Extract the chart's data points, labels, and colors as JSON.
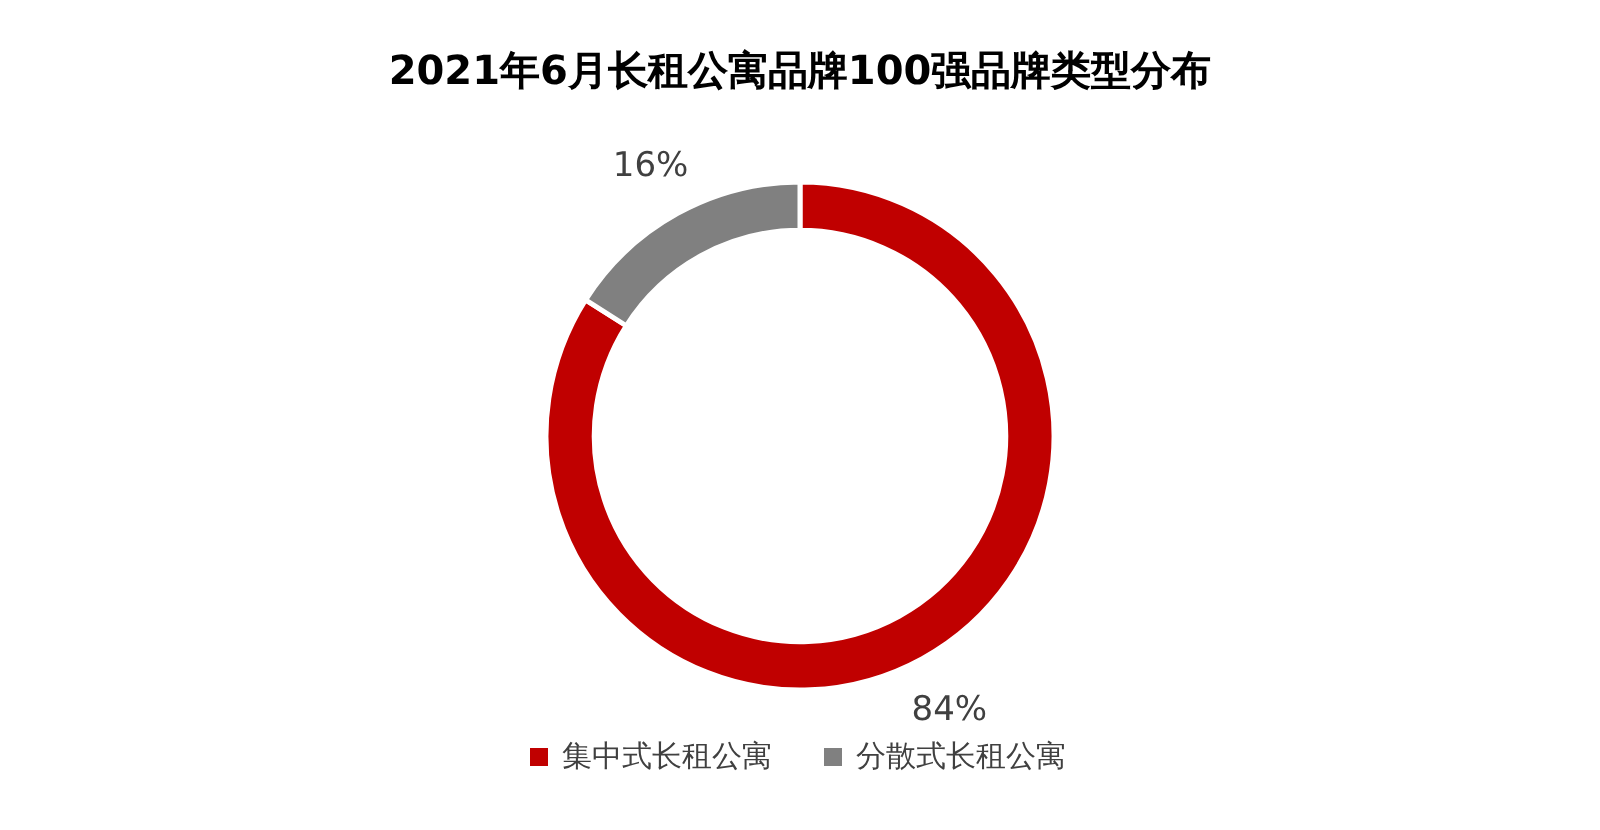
{
  "chart_data": {
    "type": "donut",
    "title": "2021年6月长租公寓品牌100强品牌类型分布",
    "categories": [
      "集中式长租公寓",
      "分散式长租公寓"
    ],
    "values": [
      84,
      16
    ],
    "colors": [
      "#c00000",
      "#808080"
    ],
    "value_labels": [
      "84%",
      "16%"
    ],
    "legend": "bottom"
  }
}
